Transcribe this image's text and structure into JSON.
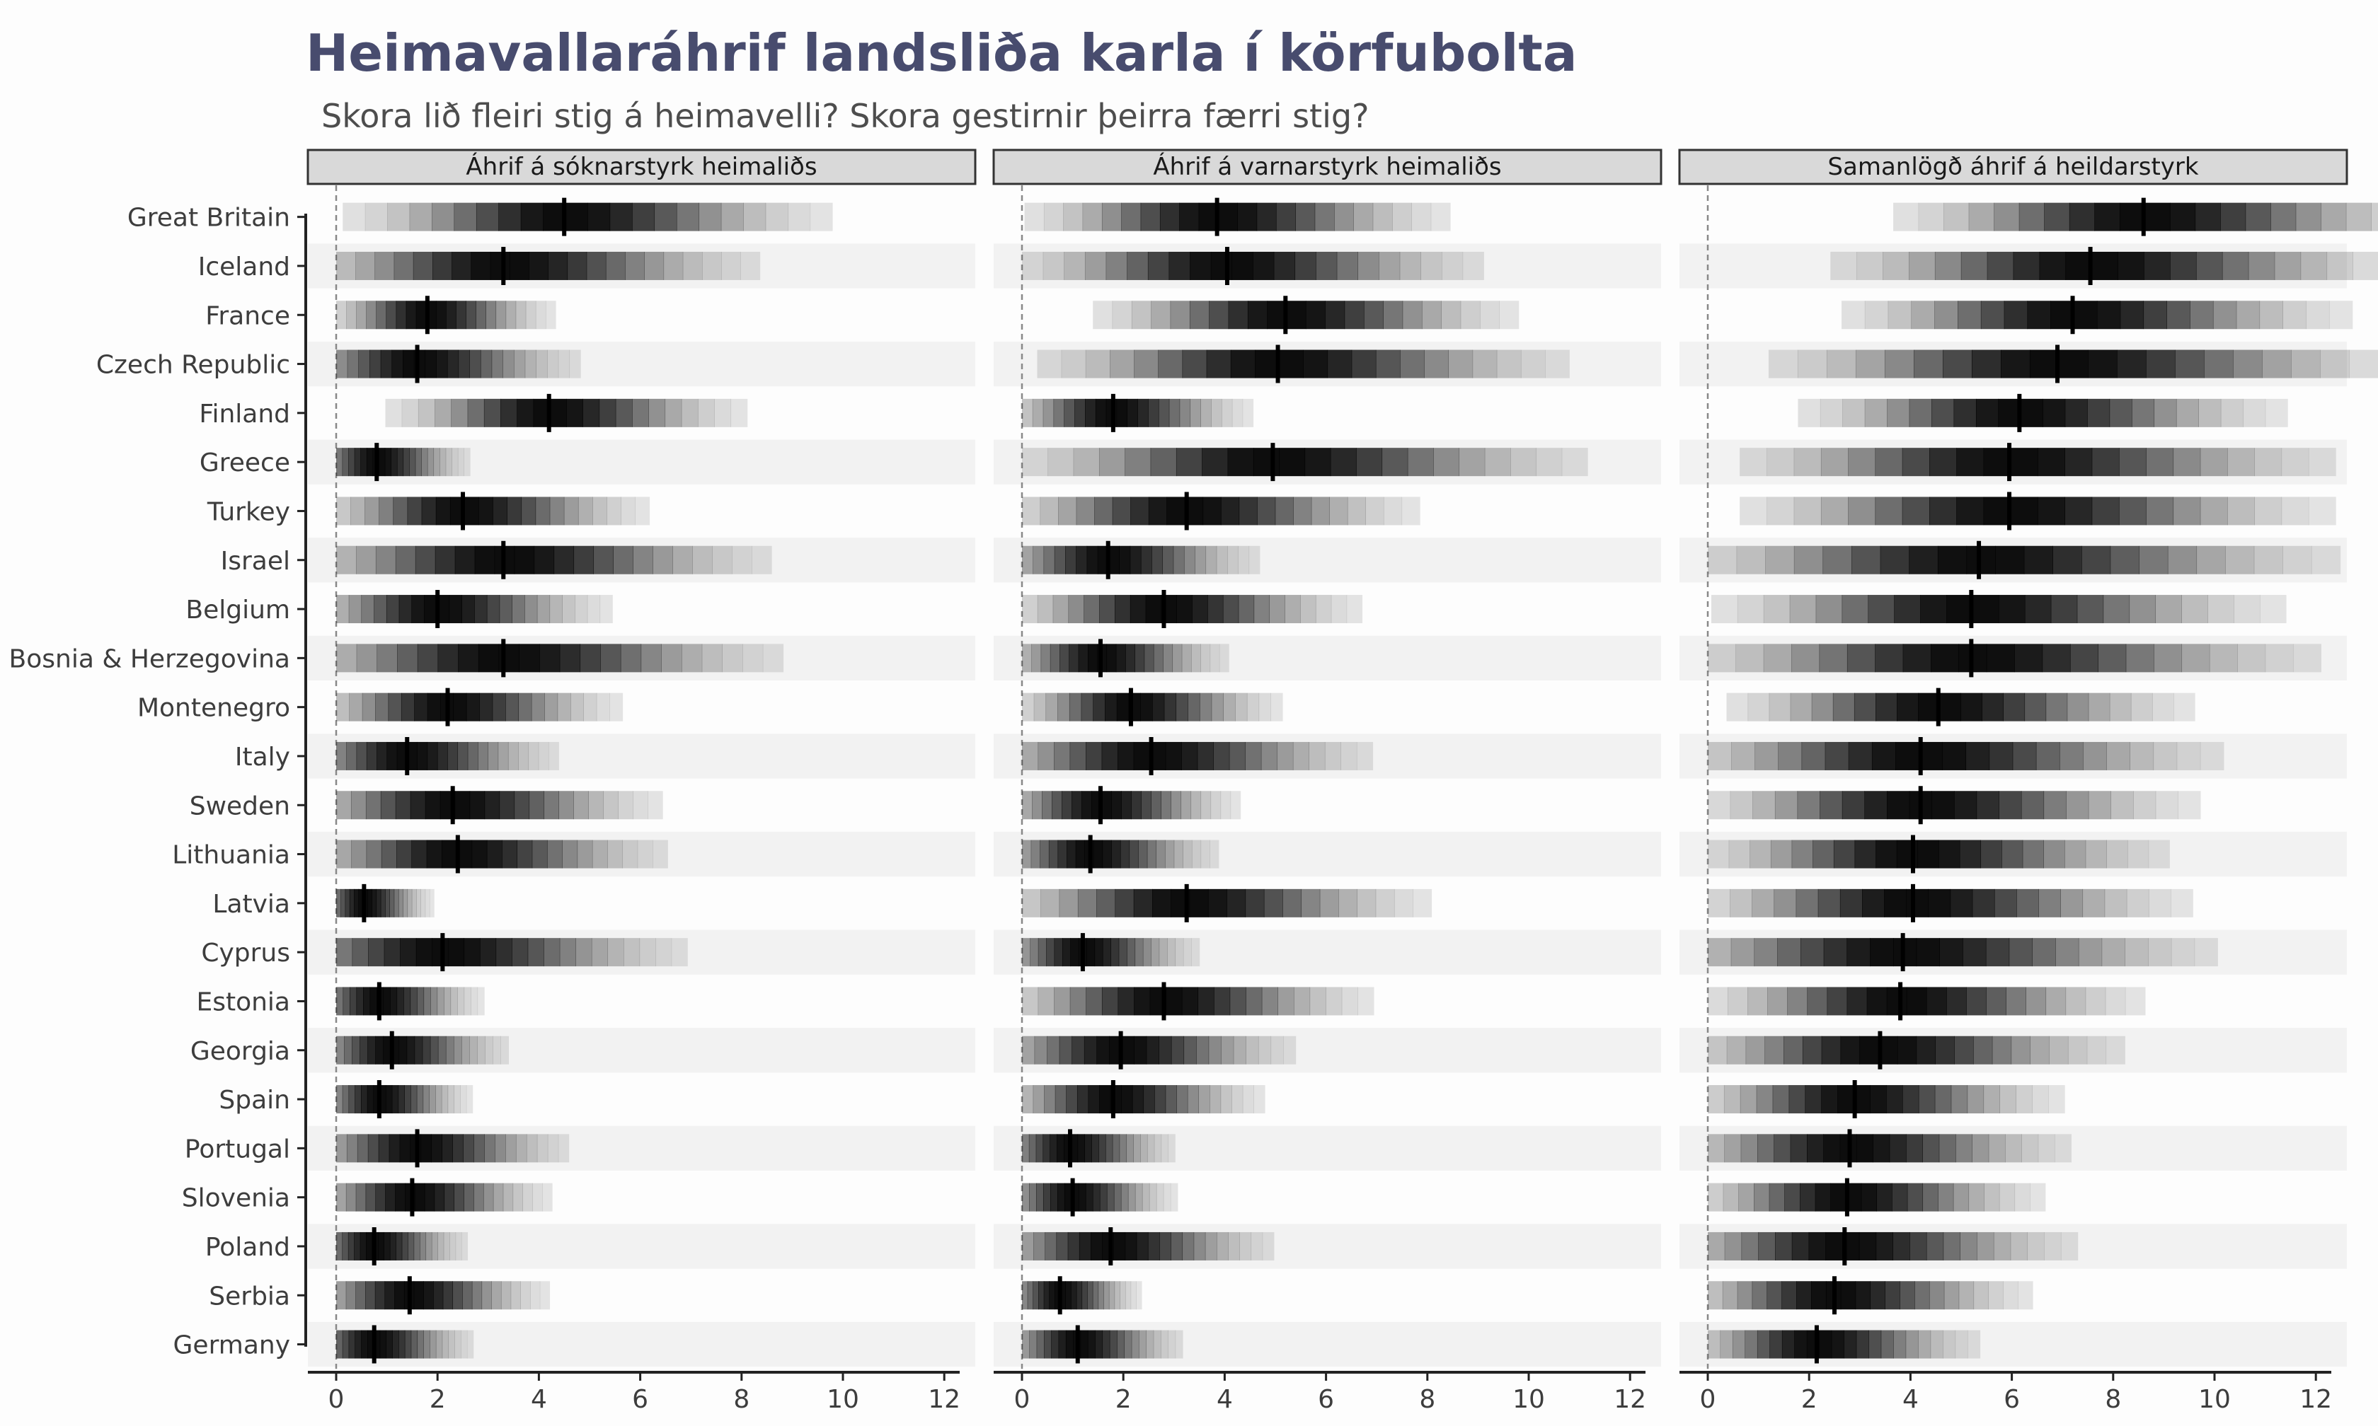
{
  "chart_data": {
    "type": "interval",
    "title": "Heimavallaráhrif landsliða karla í körfubolta",
    "subtitle": "Skora lið fleiri stig á heimavelli? Skora gestirnir þeirra færri stig?",
    "panels": [
      "Áhrif á sóknarstyrk heimaliðs",
      "Áhrif á varnarstyrk heimaliðs",
      "Samanlögð áhrif á heildarstyrk"
    ],
    "xlim": [
      0,
      12
    ],
    "xticks": [
      0,
      2,
      4,
      6,
      8,
      10,
      12
    ],
    "countries": [
      "Great Britain",
      "Iceland",
      "France",
      "Czech Republic",
      "Finland",
      "Greece",
      "Turkey",
      "Israel",
      "Belgium",
      "Bosnia & Herzegovina",
      "Montenegro",
      "Italy",
      "Sweden",
      "Lithuania",
      "Latvia",
      "Cyprus",
      "Estonia",
      "Georgia",
      "Spain",
      "Portugal",
      "Slovenia",
      "Poland",
      "Serbia",
      "Germany"
    ],
    "series": [
      {
        "name": "Áhrif á sóknarstyrk heimaliðs",
        "median": [
          4.5,
          3.3,
          1.8,
          1.6,
          4.2,
          0.8,
          2.5,
          3.3,
          2.0,
          3.3,
          2.2,
          1.4,
          2.3,
          2.4,
          0.55,
          2.1,
          0.85,
          1.1,
          0.85,
          1.6,
          1.5,
          0.75,
          1.45,
          0.75
        ],
        "spread": [
          2.3,
          2.2,
          1.1,
          1.4,
          1.7,
          0.8,
          1.6,
          2.3,
          1.5,
          2.4,
          1.5,
          1.3,
          1.8,
          1.8,
          0.6,
          2.1,
          0.9,
          1.0,
          0.8,
          1.3,
          1.2,
          0.8,
          1.2,
          0.85
        ]
      },
      {
        "name": "Áhrif á varnarstyrk heimaliðs",
        "median": [
          3.85,
          4.05,
          5.2,
          5.05,
          1.8,
          4.95,
          3.25,
          1.7,
          2.8,
          1.55,
          2.15,
          2.55,
          1.55,
          1.35,
          3.25,
          1.2,
          2.8,
          1.95,
          1.8,
          0.95,
          1.0,
          1.75,
          0.75,
          1.1
        ],
        "spread": [
          2.0,
          2.2,
          2.0,
          2.5,
          1.2,
          2.7,
          2.0,
          1.3,
          1.7,
          1.1,
          1.3,
          1.9,
          1.2,
          1.1,
          2.1,
          1.0,
          1.8,
          1.5,
          1.3,
          0.9,
          0.9,
          1.4,
          0.7,
          0.9
        ]
      },
      {
        "name": "Samanlögð áhrif á heildarstyrk",
        "median": [
          8.6,
          7.55,
          7.2,
          6.9,
          6.15,
          5.95,
          5.95,
          5.35,
          5.2,
          5.2,
          4.55,
          4.2,
          4.2,
          4.05,
          4.05,
          3.85,
          3.8,
          3.4,
          2.9,
          2.8,
          2.75,
          2.7,
          2.5,
          2.15
        ],
        "spread": [
          2.6,
          2.7,
          2.4,
          3.0,
          2.3,
          2.8,
          2.8,
          3.1,
          2.7,
          3.0,
          2.2,
          2.6,
          2.4,
          2.2,
          2.4,
          2.7,
          2.1,
          2.1,
          1.8,
          1.9,
          1.7,
          2.0,
          1.7,
          1.4
        ]
      }
    ],
    "reference_line": 0,
    "legend": "none",
    "grid": false
  }
}
